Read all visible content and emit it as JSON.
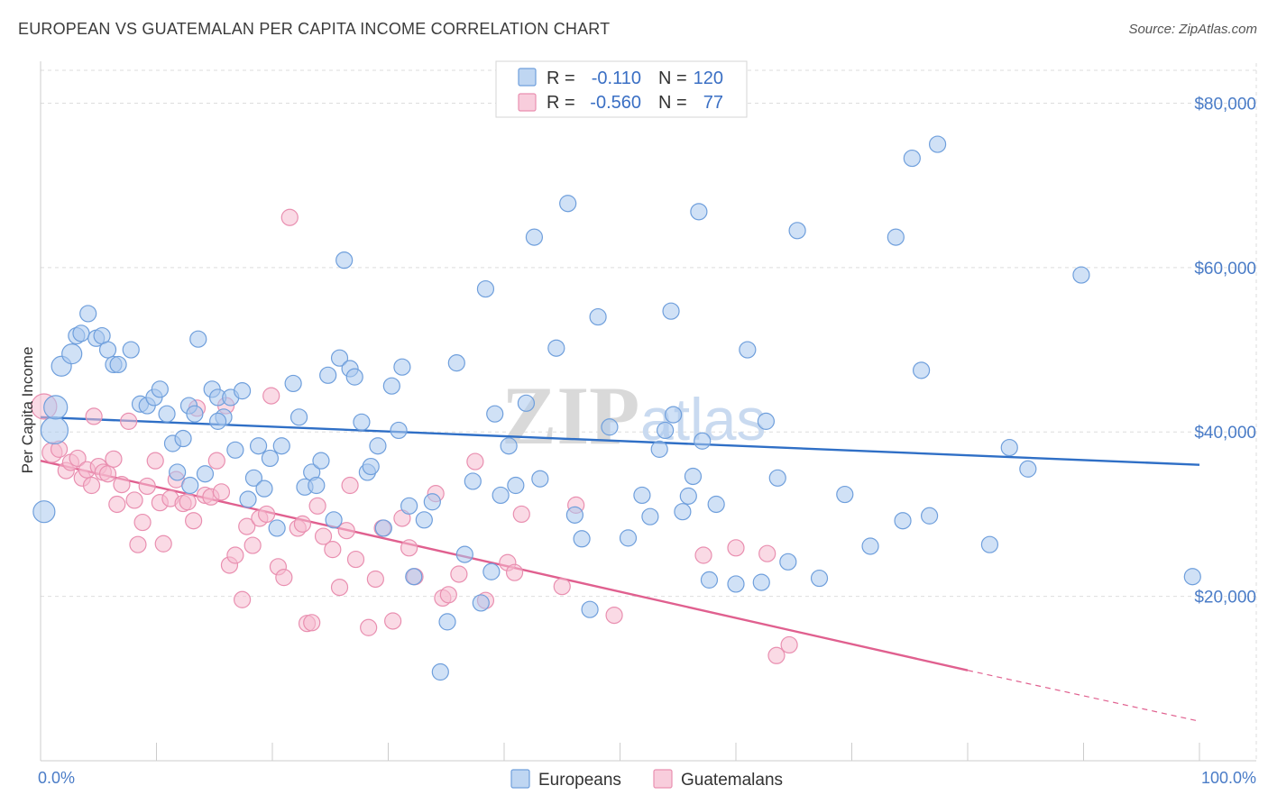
{
  "header": {
    "title": "EUROPEAN VS GUATEMALAN PER CAPITA INCOME CORRELATION CHART",
    "source": "Source: ZipAtlas.com"
  },
  "watermark": {
    "zip": "ZIP",
    "atlas": "atlas"
  },
  "legend": {
    "rows": [
      {
        "r_label": "R =",
        "r_value": "-0.110",
        "n_label": "N =",
        "n_value": "120"
      },
      {
        "r_label": "R =",
        "r_value": "-0.560",
        "n_label": "N =",
        "n_value": "77"
      }
    ],
    "bottom": [
      "Europeans",
      "Guatemalans"
    ]
  },
  "colors": {
    "europeans_fill": "#a9c8ee",
    "europeans_stroke": "#6f9fdc",
    "europeans_line": "#2f6fc6",
    "guatemalans_fill": "#f5bcd0",
    "guatemalans_stroke": "#e98fb0",
    "guatemalans_line": "#e0608f",
    "grid": "#dddddd",
    "axis_text": "#4a7cc7"
  },
  "chart_data": {
    "type": "scatter",
    "title": "EUROPEAN VS GUATEMALAN PER CAPITA INCOME CORRELATION CHART",
    "xlabel": "",
    "ylabel": "Per Capita Income",
    "xlim": [
      0,
      100
    ],
    "ylim": [
      0,
      84000
    ],
    "x_tick_labels": [
      "0.0%",
      "100.0%"
    ],
    "y_ticks": [
      20000,
      40000,
      60000,
      80000
    ],
    "y_tick_labels": [
      "$20,000",
      "$40,000",
      "$60,000",
      "$80,000"
    ],
    "grid": true,
    "legend_position": "top-center",
    "series": [
      {
        "name": "Europeans",
        "trend": {
          "x": [
            0,
            100
          ],
          "y": [
            41800,
            36000
          ],
          "dashed_from": null
        },
        "points": [
          [
            0.3,
            30300,
            12
          ],
          [
            1.2,
            40200,
            15
          ],
          [
            1.3,
            43000,
            13
          ],
          [
            1.8,
            48000,
            11
          ],
          [
            2.7,
            49500,
            11
          ],
          [
            3.1,
            51700,
            9
          ],
          [
            3.5,
            52000,
            9
          ],
          [
            4.1,
            54400,
            9
          ],
          [
            4.8,
            51400,
            9
          ],
          [
            5.3,
            51700,
            9
          ],
          [
            5.8,
            50000,
            9
          ],
          [
            6.3,
            48200,
            9
          ],
          [
            6.7,
            48200,
            9
          ],
          [
            7.8,
            50000,
            9
          ],
          [
            8.6,
            43400,
            9
          ],
          [
            9.2,
            43200,
            9
          ],
          [
            9.8,
            44200,
            9
          ],
          [
            10.3,
            45200,
            9
          ],
          [
            10.9,
            42200,
            9
          ],
          [
            11.4,
            38600,
            9
          ],
          [
            11.8,
            35100,
            9
          ],
          [
            12.3,
            39200,
            9
          ],
          [
            12.8,
            43200,
            9
          ],
          [
            13.3,
            42200,
            9
          ],
          [
            12.9,
            33500,
            9
          ],
          [
            13.6,
            51300,
            9
          ],
          [
            14.2,
            34900,
            9
          ],
          [
            14.8,
            45200,
            9
          ],
          [
            15.3,
            44200,
            9
          ],
          [
            15.8,
            41800,
            9
          ],
          [
            15.3,
            41300,
            9
          ],
          [
            16.4,
            44200,
            9
          ],
          [
            16.8,
            37800,
            9
          ],
          [
            17.4,
            45000,
            9
          ],
          [
            17.9,
            31800,
            9
          ],
          [
            18.4,
            34400,
            9
          ],
          [
            18.8,
            38300,
            9
          ],
          [
            19.3,
            33100,
            9
          ],
          [
            19.8,
            36800,
            9
          ],
          [
            20.4,
            28300,
            9
          ],
          [
            20.8,
            38300,
            9
          ],
          [
            21.8,
            45900,
            9
          ],
          [
            22.3,
            41800,
            9
          ],
          [
            22.8,
            33300,
            9
          ],
          [
            23.4,
            35100,
            9
          ],
          [
            23.8,
            33500,
            9
          ],
          [
            24.2,
            36500,
            9
          ],
          [
            24.8,
            46900,
            9
          ],
          [
            25.3,
            29300,
            9
          ],
          [
            25.8,
            49000,
            9
          ],
          [
            26.2,
            60900,
            9
          ],
          [
            26.7,
            47700,
            9
          ],
          [
            27.1,
            46700,
            9
          ],
          [
            27.7,
            41200,
            9
          ],
          [
            28.2,
            35100,
            9
          ],
          [
            28.5,
            35800,
            9
          ],
          [
            29.1,
            38300,
            9
          ],
          [
            29.6,
            28300,
            9
          ],
          [
            30.3,
            45600,
            9
          ],
          [
            30.9,
            40200,
            9
          ],
          [
            31.2,
            47900,
            9
          ],
          [
            31.8,
            31000,
            9
          ],
          [
            32.2,
            22400,
            9
          ],
          [
            33.1,
            29300,
            9
          ],
          [
            33.8,
            31500,
            9
          ],
          [
            34.5,
            10800,
            9
          ],
          [
            35.1,
            16900,
            9
          ],
          [
            35.9,
            48400,
            9
          ],
          [
            36.6,
            25100,
            9
          ],
          [
            37.3,
            34000,
            9
          ],
          [
            38.0,
            19200,
            9
          ],
          [
            38.4,
            57400,
            9
          ],
          [
            38.9,
            23000,
            9
          ],
          [
            39.2,
            42200,
            9
          ],
          [
            39.7,
            32300,
            9
          ],
          [
            40.4,
            38300,
            9
          ],
          [
            41.0,
            33500,
            9
          ],
          [
            41.9,
            43500,
            9
          ],
          [
            42.6,
            63700,
            9
          ],
          [
            43.1,
            34300,
            9
          ],
          [
            44.5,
            50200,
            9
          ],
          [
            45.5,
            67800,
            9
          ],
          [
            46.1,
            29900,
            9
          ],
          [
            46.7,
            27000,
            9
          ],
          [
            47.4,
            18400,
            9
          ],
          [
            48.1,
            54000,
            9
          ],
          [
            49.1,
            40600,
            9
          ],
          [
            50.7,
            27100,
            9
          ],
          [
            51.9,
            32300,
            9
          ],
          [
            52.6,
            29700,
            9
          ],
          [
            53.4,
            37900,
            9
          ],
          [
            53.9,
            40200,
            9
          ],
          [
            54.4,
            54700,
            9
          ],
          [
            54.6,
            42100,
            9
          ],
          [
            55.4,
            30300,
            9
          ],
          [
            55.9,
            32200,
            9
          ],
          [
            56.3,
            34600,
            9
          ],
          [
            56.8,
            66800,
            9
          ],
          [
            57.1,
            38900,
            9
          ],
          [
            57.7,
            22000,
            9
          ],
          [
            58.3,
            31200,
            9
          ],
          [
            60.0,
            21500,
            9
          ],
          [
            61.0,
            50000,
            9
          ],
          [
            62.2,
            21700,
            9
          ],
          [
            62.6,
            41300,
            9
          ],
          [
            63.6,
            34400,
            9
          ],
          [
            64.5,
            24200,
            9
          ],
          [
            65.3,
            64500,
            9
          ],
          [
            67.2,
            22200,
            9
          ],
          [
            69.4,
            32400,
            9
          ],
          [
            71.6,
            26100,
            9
          ],
          [
            73.8,
            63700,
            9
          ],
          [
            74.4,
            29200,
            9
          ],
          [
            75.2,
            73300,
            9
          ],
          [
            76.0,
            47500,
            9
          ],
          [
            76.7,
            29800,
            9
          ],
          [
            77.4,
            75000,
            9
          ],
          [
            81.9,
            26300,
            9
          ],
          [
            83.6,
            38100,
            9
          ],
          [
            85.2,
            35500,
            9
          ],
          [
            89.8,
            59100,
            9
          ],
          [
            99.4,
            22400,
            9
          ]
        ]
      },
      {
        "name": "Guatemalans",
        "trend": {
          "x": [
            0,
            80,
            100
          ],
          "y": [
            36500,
            11000,
            4800
          ],
          "dashed_from": 80
        },
        "points": [
          [
            0.3,
            43100,
            14
          ],
          [
            1.0,
            37500,
            11
          ],
          [
            1.6,
            37900,
            9
          ],
          [
            2.2,
            35300,
            9
          ],
          [
            2.6,
            36300,
            9
          ],
          [
            3.2,
            36800,
            9
          ],
          [
            3.6,
            34400,
            9
          ],
          [
            4.0,
            35400,
            9
          ],
          [
            4.4,
            33500,
            9
          ],
          [
            4.6,
            41900,
            9
          ],
          [
            5.0,
            35800,
            9
          ],
          [
            5.4,
            35100,
            9
          ],
          [
            5.8,
            34900,
            9
          ],
          [
            6.3,
            36700,
            9
          ],
          [
            6.6,
            31200,
            9
          ],
          [
            7.0,
            33600,
            9
          ],
          [
            7.6,
            41300,
            9
          ],
          [
            8.1,
            31700,
            9
          ],
          [
            8.4,
            26300,
            9
          ],
          [
            8.8,
            29000,
            9
          ],
          [
            9.2,
            33400,
            9
          ],
          [
            9.9,
            36500,
            9
          ],
          [
            10.3,
            31400,
            9
          ],
          [
            10.6,
            26400,
            9
          ],
          [
            11.2,
            31900,
            9
          ],
          [
            11.7,
            34200,
            9
          ],
          [
            12.3,
            31300,
            9
          ],
          [
            12.7,
            31500,
            9
          ],
          [
            13.2,
            29200,
            9
          ],
          [
            13.5,
            42900,
            9
          ],
          [
            14.2,
            32300,
            9
          ],
          [
            14.7,
            32100,
            9
          ],
          [
            15.2,
            36500,
            9
          ],
          [
            15.6,
            32700,
            9
          ],
          [
            16.0,
            43200,
            9
          ],
          [
            16.3,
            23800,
            9
          ],
          [
            16.8,
            25000,
            9
          ],
          [
            17.4,
            19600,
            9
          ],
          [
            17.8,
            28500,
            9
          ],
          [
            18.3,
            26200,
            9
          ],
          [
            18.9,
            29500,
            9
          ],
          [
            19.5,
            30000,
            9
          ],
          [
            19.9,
            44400,
            9
          ],
          [
            20.5,
            23600,
            9
          ],
          [
            21.0,
            22300,
            9
          ],
          [
            21.5,
            66100,
            9
          ],
          [
            22.2,
            28300,
            9
          ],
          [
            22.6,
            28800,
            9
          ],
          [
            23.0,
            16700,
            9
          ],
          [
            23.4,
            16800,
            9
          ],
          [
            23.9,
            31000,
            9
          ],
          [
            24.4,
            27300,
            9
          ],
          [
            25.2,
            25700,
            9
          ],
          [
            25.8,
            21100,
            9
          ],
          [
            26.4,
            28000,
            9
          ],
          [
            26.7,
            33500,
            9
          ],
          [
            27.2,
            24500,
            9
          ],
          [
            28.3,
            16200,
            9
          ],
          [
            28.9,
            22100,
            9
          ],
          [
            29.5,
            28300,
            9
          ],
          [
            30.4,
            17000,
            9
          ],
          [
            31.2,
            29500,
            9
          ],
          [
            31.8,
            25900,
            9
          ],
          [
            32.3,
            22400,
            9
          ],
          [
            34.1,
            32500,
            9
          ],
          [
            34.7,
            19800,
            9
          ],
          [
            35.2,
            20200,
            9
          ],
          [
            36.1,
            22700,
            9
          ],
          [
            37.5,
            36400,
            9
          ],
          [
            38.4,
            19500,
            9
          ],
          [
            40.3,
            24100,
            9
          ],
          [
            40.9,
            22900,
            9
          ],
          [
            41.5,
            30000,
            9
          ],
          [
            45.0,
            21200,
            9
          ],
          [
            46.2,
            31100,
            9
          ],
          [
            49.5,
            17700,
            9
          ],
          [
            57.2,
            25000,
            9
          ],
          [
            60.0,
            25900,
            9
          ],
          [
            62.7,
            25200,
            9
          ],
          [
            63.5,
            12800,
            9
          ],
          [
            64.6,
            14100,
            9
          ]
        ]
      }
    ]
  }
}
